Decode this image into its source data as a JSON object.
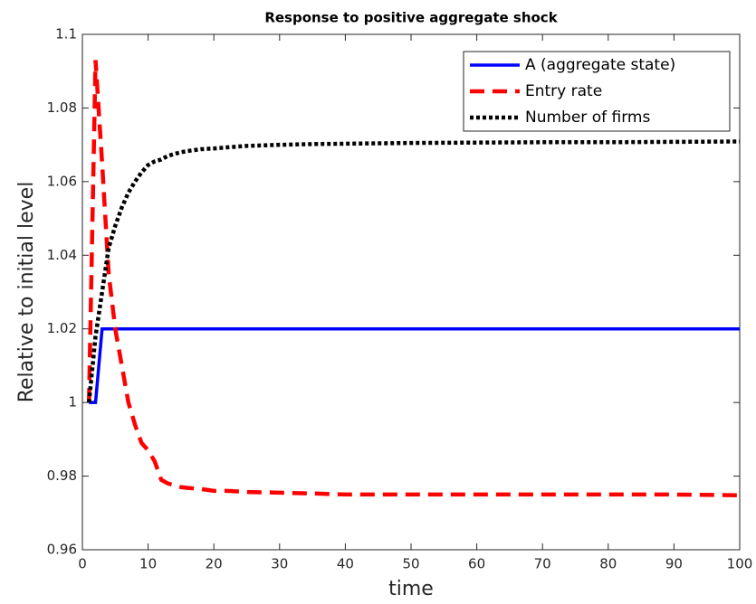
{
  "chart_data": {
    "type": "line",
    "title": "Response to positive aggregate shock",
    "xlabel": "time",
    "ylabel": "Relative to initial level",
    "x": [
      1,
      2,
      3,
      4,
      5,
      6,
      7,
      8,
      9,
      10,
      11,
      12,
      13,
      14,
      15,
      16,
      18,
      20,
      22,
      25,
      30,
      35,
      40,
      50,
      60,
      70,
      80,
      90,
      100
    ],
    "series": [
      {
        "name": "A (aggregate state)",
        "color": "#0000ff",
        "style": "solid",
        "values": [
          1,
          1,
          1.02,
          1.02,
          1.02,
          1.02,
          1.02,
          1.02,
          1.02,
          1.02,
          1.02,
          1.02,
          1.02,
          1.02,
          1.02,
          1.02,
          1.02,
          1.02,
          1.02,
          1.02,
          1.02,
          1.02,
          1.02,
          1.02,
          1.02,
          1.02,
          1.02,
          1.02,
          1.02
        ]
      },
      {
        "name": "Entry rate",
        "color": "#ff0000",
        "style": "dashed",
        "values": [
          1,
          1.093,
          1.065,
          1.035,
          1.02,
          1.01,
          1,
          0.994,
          0.989,
          0.987,
          0.984,
          0.979,
          0.978,
          0.9775,
          0.977,
          0.9768,
          0.9765,
          0.976,
          0.976,
          0.9757,
          0.9755,
          0.9753,
          0.975,
          0.975,
          0.975,
          0.975,
          0.975,
          0.975,
          0.9748
        ]
      },
      {
        "name": "Number of firms",
        "color": "#000000",
        "style": "dotted",
        "values": [
          1,
          1.018,
          1.03,
          1.042,
          1.048,
          1.053,
          1.057,
          1.06,
          1.0625,
          1.0645,
          1.0655,
          1.066,
          1.067,
          1.0675,
          1.068,
          1.0683,
          1.0688,
          1.069,
          1.0693,
          1.0697,
          1.07,
          1.0702,
          1.0703,
          1.0705,
          1.0706,
          1.0707,
          1.0707,
          1.0708,
          1.0709
        ]
      }
    ],
    "xlim": [
      0,
      100
    ],
    "xticks": [
      0,
      10,
      20,
      30,
      40,
      50,
      60,
      70,
      80,
      90,
      100
    ],
    "ylim": [
      0.96,
      1.1
    ],
    "yticks": [
      0.96,
      0.98,
      1,
      1.02,
      1.04,
      1.06,
      1.08,
      1.1
    ],
    "grid": false,
    "legend": "top-right"
  }
}
